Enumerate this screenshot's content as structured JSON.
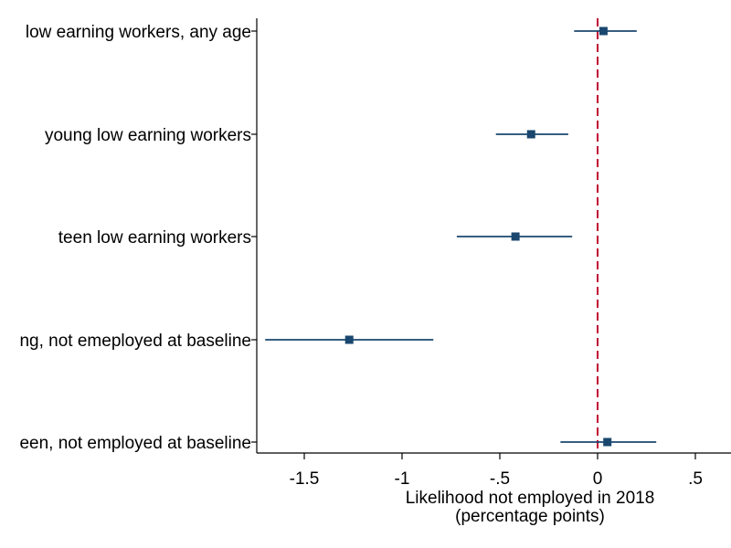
{
  "chart_data": {
    "type": "scatter",
    "subtype": "coefficient-plot",
    "categories": [
      "low earning workers, any age",
      "young low earning workers",
      "teen low earning workers",
      "ng, not emeployed at baseline",
      "een, not employed at baseline"
    ],
    "estimates": [
      0.03,
      -0.34,
      -0.42,
      -1.27,
      0.05
    ],
    "ci_low": [
      -0.12,
      -0.52,
      -0.72,
      -1.7,
      -0.19
    ],
    "ci_high": [
      0.2,
      -0.15,
      -0.13,
      -0.84,
      0.3
    ],
    "xlabel_line1": "Likelihood not employed in 2018",
    "xlabel_line2": "(percentage points)",
    "xticks": [
      -1.5,
      -1,
      -0.5,
      0,
      0.5
    ],
    "xtick_labels": [
      "-1.5",
      "-1",
      "-.5",
      "0",
      ".5"
    ],
    "xlim": [
      -1.75,
      0.69
    ],
    "reference_line": 0,
    "grid": false,
    "colors": {
      "marker": "#1a476f",
      "reference": "#c10534",
      "axis": "#000000"
    }
  }
}
